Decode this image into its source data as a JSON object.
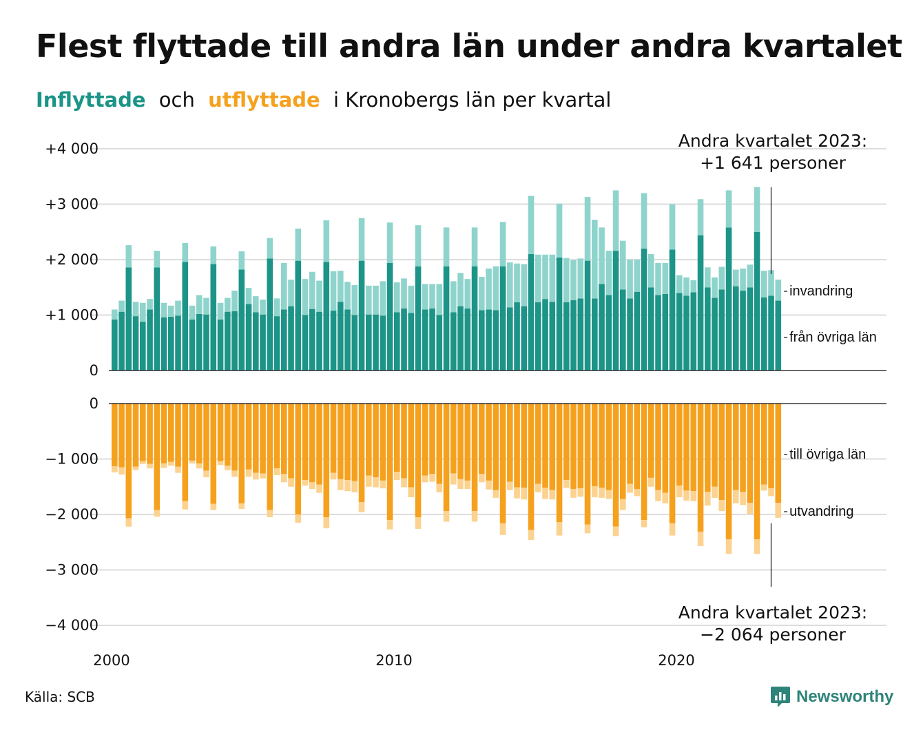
{
  "title": "Flest flyttade till andra län under andra kvartalet",
  "subtitle": {
    "part1": "Inflyttade",
    "part2": "och",
    "part3": "utflyttade",
    "part4": "i Kronobergs län per kvartal"
  },
  "colors": {
    "in_main": "#1c9487",
    "in_light": "#8fd4cc",
    "out_main": "#f5a11e",
    "out_light": "#fbd28f",
    "grid": "#dddddd"
  },
  "source": "Källa: SCB",
  "brand": "Newsworthy",
  "chart_data": [
    {
      "type": "bar",
      "stacked": true,
      "title": "Inflyttade",
      "ylim": [
        0,
        4000
      ],
      "y_ticks": [
        "0",
        "+1 000",
        "+2 000",
        "+3 000",
        "+4 000"
      ],
      "x_ticks": [
        "2000",
        "2010",
        "2020"
      ],
      "x_start": "2000 Q1",
      "frequency": "quarter",
      "annotation": {
        "line1": "Andra kvartalet 2023:",
        "line2": "+1 641 personer"
      },
      "series": [
        {
          "name": "från övriga län",
          "values": [
            920,
            1060,
            1860,
            980,
            880,
            1100,
            1860,
            960,
            970,
            990,
            1960,
            920,
            1020,
            1010,
            1920,
            920,
            1060,
            1070,
            1820,
            1200,
            1050,
            1010,
            2020,
            980,
            1100,
            1160,
            1980,
            1000,
            1110,
            1060,
            1960,
            1080,
            1240,
            1100,
            1000,
            1980,
            1010,
            1010,
            990,
            1940,
            1050,
            1120,
            1040,
            1880,
            1100,
            1120,
            1000,
            1880,
            1050,
            1160,
            1120,
            1880,
            1090,
            1100,
            1090,
            1880,
            1140,
            1230,
            1160,
            2100,
            1230,
            1290,
            1240,
            2040,
            1230,
            1270,
            1300,
            1980,
            1300,
            1560,
            1360,
            2160,
            1460,
            1300,
            1420,
            2200,
            1500,
            1360,
            1380,
            2180,
            1400,
            1350,
            1410,
            2440,
            1500,
            1310,
            1460,
            2580,
            1520,
            1440,
            1500,
            2500,
            1320,
            1350,
            1260
          ]
        },
        {
          "name": "invandring",
          "values": [
            180,
            200,
            400,
            260,
            340,
            190,
            300,
            260,
            200,
            270,
            340,
            250,
            340,
            300,
            320,
            300,
            250,
            370,
            330,
            290,
            290,
            270,
            370,
            320,
            840,
            480,
            580,
            650,
            670,
            560,
            750,
            710,
            560,
            500,
            540,
            770,
            520,
            520,
            620,
            730,
            540,
            540,
            490,
            740,
            460,
            440,
            560,
            700,
            560,
            600,
            530,
            700,
            600,
            740,
            790,
            800,
            810,
            700,
            760,
            1050,
            860,
            800,
            850,
            970,
            800,
            720,
            720,
            1150,
            1420,
            1020,
            800,
            1090,
            880,
            700,
            580,
            1000,
            600,
            580,
            560,
            820,
            320,
            330,
            220,
            650,
            360,
            370,
            410,
            670,
            300,
            400,
            410,
            810,
            480,
            460,
            380
          ]
        }
      ]
    },
    {
      "type": "bar",
      "stacked": true,
      "title": "Utflyttade",
      "ylim": [
        -4000,
        0
      ],
      "y_ticks": [
        "0",
        "−1 000",
        "−2 000",
        "−3 000",
        "−4 000"
      ],
      "annotation": {
        "line1": "Andra kvartalet 2023:",
        "line2": "−2 064 personer"
      },
      "series": [
        {
          "name": "till övriga län",
          "values": [
            -1130,
            -1150,
            -2070,
            -1140,
            -1040,
            -1090,
            -1920,
            -1080,
            -1050,
            -1140,
            -1760,
            -1030,
            -1080,
            -1210,
            -1810,
            -1040,
            -1120,
            -1210,
            -1800,
            -1190,
            -1250,
            -1260,
            -1920,
            -1170,
            -1270,
            -1350,
            -2000,
            -1380,
            -1420,
            -1460,
            -2050,
            -1250,
            -1360,
            -1380,
            -1400,
            -1780,
            -1300,
            -1330,
            -1390,
            -2100,
            -1230,
            -1350,
            -1510,
            -2050,
            -1300,
            -1270,
            -1450,
            -1940,
            -1260,
            -1360,
            -1390,
            -1940,
            -1270,
            -1390,
            -1560,
            -2160,
            -1410,
            -1510,
            -1520,
            -2280,
            -1450,
            -1520,
            -1560,
            -2140,
            -1380,
            -1540,
            -1530,
            -2180,
            -1490,
            -1520,
            -1560,
            -2220,
            -1720,
            -1450,
            -1540,
            -2100,
            -1340,
            -1560,
            -1610,
            -2160,
            -1480,
            -1570,
            -1580,
            -2310,
            -1590,
            -1500,
            -1740,
            -2450,
            -1560,
            -1590,
            -1790,
            -2450,
            -1460,
            -1530,
            -1790
          ]
        },
        {
          "name": "utvandring",
          "values": [
            -110,
            -130,
            -150,
            -60,
            -50,
            -80,
            -120,
            -80,
            -70,
            -110,
            -150,
            -50,
            -90,
            -120,
            -110,
            -70,
            -80,
            -110,
            -100,
            -130,
            -120,
            -90,
            -130,
            -120,
            -150,
            -150,
            -150,
            -100,
            -120,
            -150,
            -200,
            -120,
            -200,
            -200,
            -200,
            -180,
            -200,
            -180,
            -140,
            -170,
            -150,
            -160,
            -180,
            -210,
            -120,
            -140,
            -150,
            -190,
            -200,
            -180,
            -150,
            -190,
            -150,
            -160,
            -140,
            -210,
            -150,
            -200,
            -210,
            -180,
            -150,
            -200,
            -170,
            -240,
            -140,
            -160,
            -150,
            -160,
            -200,
            -180,
            -160,
            -170,
            -200,
            -160,
            -130,
            -130,
            -160,
            -200,
            -190,
            -220,
            -210,
            -180,
            -180,
            -260,
            -250,
            -200,
            -200,
            -260,
            -240,
            -240,
            -200,
            -260,
            -110,
            -140,
            -270
          ]
        }
      ]
    }
  ]
}
